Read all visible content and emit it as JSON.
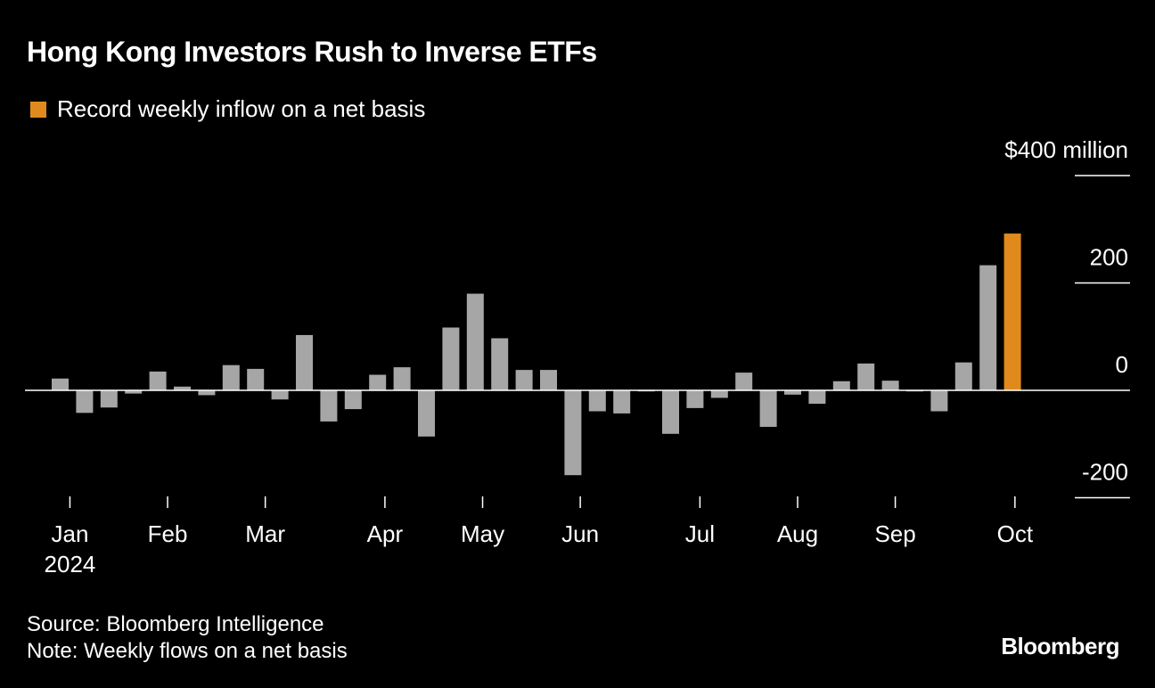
{
  "chart_data": {
    "type": "bar",
    "title": "Hong Kong Investors Rush to Inverse ETFs",
    "legend": {
      "label": "Record weekly inflow on a net basis",
      "color": "#e08a1e",
      "placement": "top-left"
    },
    "y_unit_label": "$400 million",
    "ylim": [
      -200,
      400
    ],
    "yticks": [
      {
        "value": 400,
        "label": "$400 million"
      },
      {
        "value": 200,
        "label": "200"
      },
      {
        "value": 0,
        "label": "0"
      },
      {
        "value": -200,
        "label": "-200"
      }
    ],
    "x_ticks": [
      {
        "label": "Jan",
        "sublabel": "2024",
        "week": 0.4
      },
      {
        "label": "Feb",
        "week": 4.4
      },
      {
        "label": "Mar",
        "week": 8.4
      },
      {
        "label": "Apr",
        "week": 13.3
      },
      {
        "label": "May",
        "week": 17.3
      },
      {
        "label": "Jun",
        "week": 21.3
      },
      {
        "label": "Jul",
        "week": 26.2
      },
      {
        "label": "Aug",
        "week": 30.2
      },
      {
        "label": "Sep",
        "week": 34.2
      },
      {
        "label": "Oct",
        "week": 39.1
      }
    ],
    "bar_color": "#a6a6a6",
    "highlight_color": "#e08a1e",
    "values": [
      22,
      -42,
      -32,
      -6,
      35,
      7,
      -9,
      47,
      40,
      -17,
      103,
      -58,
      -35,
      29,
      43,
      -86,
      117,
      180,
      97,
      38,
      38,
      -158,
      -39,
      -43,
      -2,
      -81,
      -33,
      -14,
      33,
      -68,
      -8,
      -25,
      17,
      50,
      18,
      -2,
      -39,
      52,
      233,
      292
    ],
    "highlight_index": 39,
    "grid": false
  },
  "footer": {
    "source": "Source: Bloomberg Intelligence",
    "note": "Note: Weekly flows on a net basis"
  },
  "brand": "Bloomberg"
}
